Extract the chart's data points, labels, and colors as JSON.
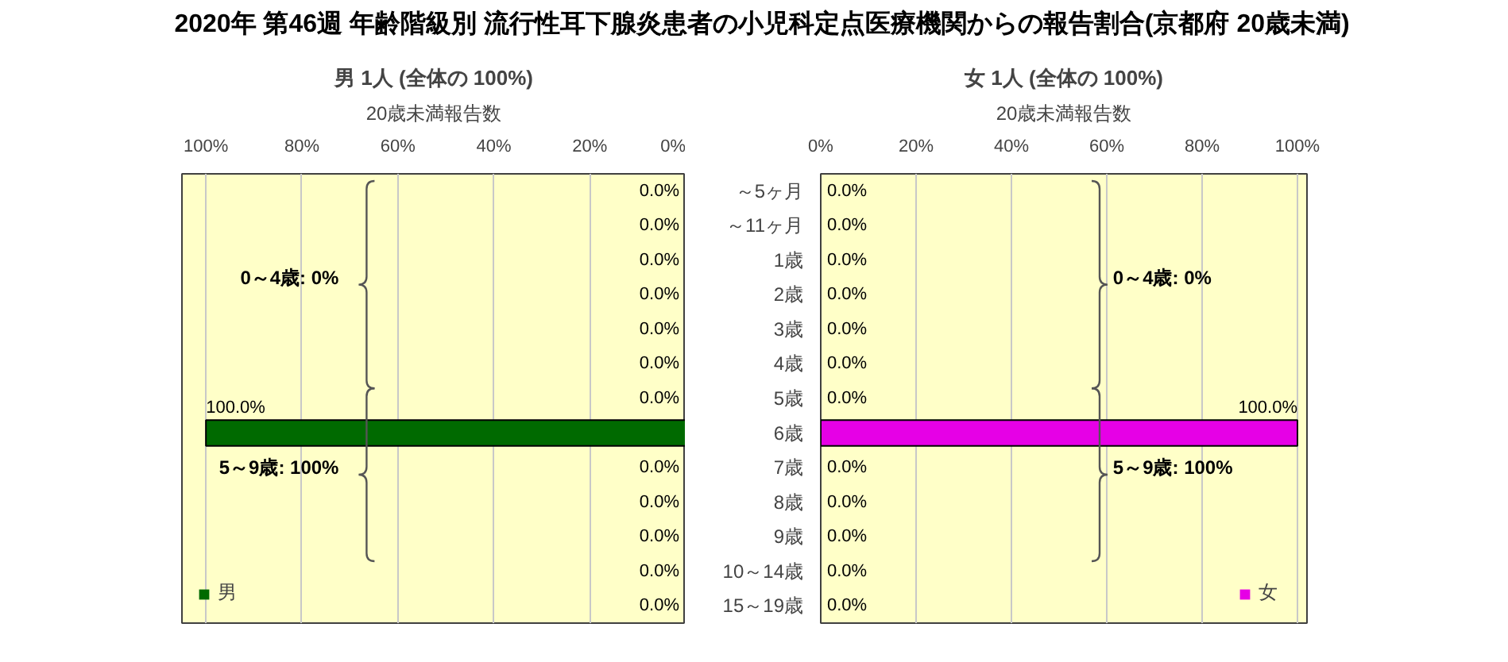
{
  "chart_data": [
    {
      "type": "bar",
      "orientation": "horizontal",
      "title": "2020年 第46週 年齢階級別 流行性耳下腺炎患者の小児科定点医療機関からの報告割合(京都府 20歳未満)",
      "subtitle": "男 1人 (全体の 100%)",
      "xlabel": "20歳未満報告数",
      "categories": [
        null,
        null,
        null,
        null,
        null,
        null,
        null,
        null,
        null,
        null,
        null,
        null,
        null
      ],
      "series": [
        {
          "name": "男",
          "color": "#006a00",
          "values": [
            0,
            0,
            0,
            0,
            0,
            0,
            0,
            100,
            0,
            0,
            0,
            0,
            0
          ],
          "value_labels": [
            "0.0%",
            "0.0%",
            "0.0%",
            "0.0%",
            "0.0%",
            "0.0%",
            "0.0%",
            "100.0%",
            "0.0%",
            "0.0%",
            "0.0%",
            "0.0%",
            "0.0%"
          ]
        }
      ],
      "xlim": [
        105,
        0
      ],
      "xticks": [
        {
          "value": 100,
          "label": "100%"
        },
        {
          "value": 80,
          "label": "80%"
        },
        {
          "value": 60,
          "label": "60%"
        },
        {
          "value": 40,
          "label": "40%"
        },
        {
          "value": 20,
          "label": "20%"
        },
        {
          "value": 0,
          "label": "0%"
        }
      ],
      "grid": "x",
      "legend": "bottom left",
      "annotations": [
        "0～4歳: 0%",
        "5～9歳: 100%"
      ]
    },
    {
      "type": "bar",
      "orientation": "horizontal",
      "subtitle": "女 1人 (全体の 100%)",
      "xlabel": "20歳未満報告数",
      "categories": [
        "～5ヶ月",
        "～11ヶ月",
        "1歳",
        "2歳",
        "3歳",
        "4歳",
        "5歳",
        "6歳",
        "7歳",
        "8歳",
        "9歳",
        "10～14歳",
        "15～19歳"
      ],
      "series": [
        {
          "name": "女",
          "color": "#e600e6",
          "values": [
            0,
            0,
            0,
            0,
            0,
            0,
            0,
            100,
            0,
            0,
            0,
            0,
            0
          ],
          "value_labels": [
            "0.0%",
            "0.0%",
            "0.0%",
            "0.0%",
            "0.0%",
            "0.0%",
            "0.0%",
            "100.0%",
            "0.0%",
            "0.0%",
            "0.0%",
            "0.0%",
            "0.0%"
          ]
        }
      ],
      "xlim": [
        0,
        102
      ],
      "xticks": [
        {
          "value": 0,
          "label": "0%"
        },
        {
          "value": 20,
          "label": "20%"
        },
        {
          "value": 40,
          "label": "40%"
        },
        {
          "value": 60,
          "label": "60%"
        },
        {
          "value": 80,
          "label": "80%"
        },
        {
          "value": 100,
          "label": "100%"
        }
      ],
      "grid": "x",
      "legend": "bottom right",
      "annotations": [
        "0～4歳: 0%",
        "5～9歳: 100%"
      ]
    }
  ]
}
